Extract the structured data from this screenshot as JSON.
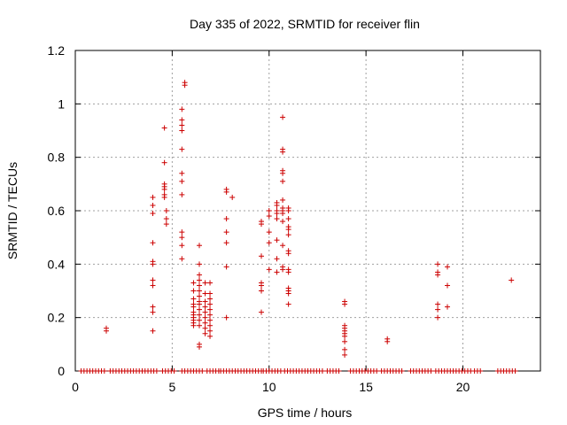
{
  "chart_data": {
    "type": "scatter",
    "title": "Day 335 of 2022, SRMTID for receiver flin",
    "xlabel": "GPS time / hours",
    "ylabel": "SRMTID / TECUs",
    "xlim": [
      0,
      24
    ],
    "ylim": [
      0,
      1.2
    ],
    "xticks": [
      0,
      5,
      10,
      15,
      20
    ],
    "yticks": [
      0,
      0.2,
      0.4,
      0.6,
      0.8,
      1,
      1.2
    ],
    "ytick_labels": [
      "0",
      "0.2",
      "0.4",
      "0.6",
      "0.8",
      "1",
      "1.2"
    ],
    "grid": true,
    "marker": "+",
    "color": "#cc0000",
    "clusters": [
      {
        "x": 1.6,
        "y": [
          0.15,
          0.16
        ]
      },
      {
        "x": 4.0,
        "y": [
          0.15,
          0.22,
          0.24,
          0.32,
          0.34,
          0.4,
          0.41,
          0.48,
          0.59,
          0.62,
          0.65
        ]
      },
      {
        "x": 4.6,
        "y": [
          0.66,
          0.68,
          0.69,
          0.7,
          0.65,
          0.91,
          0.78
        ]
      },
      {
        "x": 4.7,
        "y": [
          0.55,
          0.57,
          0.6
        ]
      },
      {
        "x": 5.5,
        "y": [
          0.42,
          0.47,
          0.5,
          0.52,
          0.66,
          0.71,
          0.74,
          0.83,
          0.9,
          0.92,
          0.94,
          0.98
        ]
      },
      {
        "x": 5.65,
        "y": [
          1.07,
          1.08
        ]
      },
      {
        "x": 6.1,
        "y": [
          0.33,
          0.3,
          0.27,
          0.25,
          0.24,
          0.22,
          0.21,
          0.2,
          0.19,
          0.18,
          0.17
        ]
      },
      {
        "x": 6.4,
        "y": [
          0.47,
          0.4,
          0.36,
          0.34,
          0.32,
          0.3,
          0.28,
          0.26,
          0.25,
          0.23,
          0.21,
          0.19,
          0.17,
          0.1,
          0.09
        ]
      },
      {
        "x": 6.7,
        "y": [
          0.33,
          0.29,
          0.26,
          0.24,
          0.22,
          0.2,
          0.18,
          0.16,
          0.14
        ]
      },
      {
        "x": 6.95,
        "y": [
          0.33,
          0.29,
          0.27,
          0.25,
          0.23,
          0.21,
          0.19,
          0.17,
          0.15,
          0.13
        ]
      },
      {
        "x": 7.8,
        "y": [
          0.2,
          0.39,
          0.48,
          0.52,
          0.57,
          0.67,
          0.68
        ]
      },
      {
        "x": 8.1,
        "y": [
          0.65
        ]
      },
      {
        "x": 9.6,
        "y": [
          0.22,
          0.3,
          0.32,
          0.33,
          0.43,
          0.55,
          0.56
        ]
      },
      {
        "x": 10.0,
        "y": [
          0.38,
          0.48,
          0.52,
          0.58,
          0.6
        ]
      },
      {
        "x": 10.4,
        "y": [
          0.37,
          0.42,
          0.49,
          0.57,
          0.59,
          0.6,
          0.62,
          0.63
        ]
      },
      {
        "x": 10.7,
        "y": [
          0.38,
          0.39,
          0.47,
          0.56,
          0.59,
          0.6,
          0.61,
          0.64,
          0.71,
          0.74,
          0.75,
          0.82,
          0.83,
          0.95
        ]
      },
      {
        "x": 11.0,
        "y": [
          0.25,
          0.29,
          0.3,
          0.31,
          0.37,
          0.38,
          0.44,
          0.45,
          0.51,
          0.53,
          0.54,
          0.57,
          0.6,
          0.61
        ]
      },
      {
        "x": 13.9,
        "y": [
          0.06,
          0.08,
          0.11,
          0.13,
          0.14,
          0.15,
          0.16,
          0.17,
          0.25,
          0.26
        ]
      },
      {
        "x": 16.1,
        "y": [
          0.11,
          0.12
        ]
      },
      {
        "x": 18.7,
        "y": [
          0.2,
          0.23,
          0.25,
          0.36,
          0.37,
          0.4
        ]
      },
      {
        "x": 19.2,
        "y": [
          0.24,
          0.32,
          0.39
        ]
      },
      {
        "x": 22.5,
        "y": [
          0.34
        ]
      }
    ],
    "baseline": {
      "y": 0,
      "x_ranges": [
        [
          0.3,
          1.6
        ],
        [
          1.8,
          3.2
        ],
        [
          3.3,
          4.3
        ],
        [
          4.5,
          5.2
        ],
        [
          5.5,
          6.6
        ],
        [
          6.8,
          7.4
        ],
        [
          7.5,
          9.6
        ],
        [
          9.7,
          10.7
        ],
        [
          10.8,
          12.8
        ],
        [
          13.0,
          13.7
        ],
        [
          14.2,
          15.6
        ],
        [
          15.8,
          16.9
        ],
        [
          17.3,
          18.4
        ],
        [
          18.6,
          20.4
        ],
        [
          20.6,
          20.9
        ],
        [
          21.8,
          22.7
        ]
      ],
      "step": 0.15
    }
  }
}
